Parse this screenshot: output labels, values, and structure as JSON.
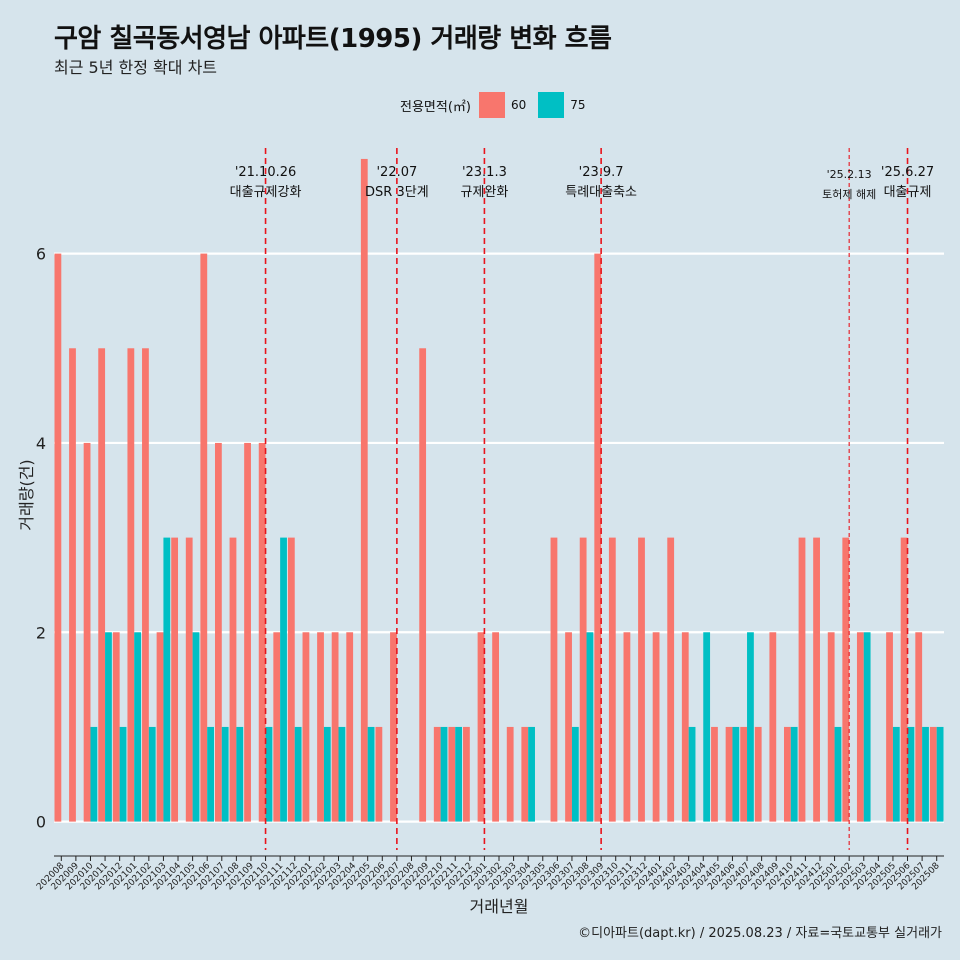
{
  "header": {
    "title": "구암 칠곡동서영남 아파트(1995) 거래량 변화 흐름",
    "subtitle": "최근 5년 한정 확대 차트"
  },
  "legend": {
    "title": "전용면적(㎡)",
    "items": [
      {
        "label": "60",
        "color": "#f8766d"
      },
      {
        "label": "75",
        "color": "#00bfc4"
      }
    ]
  },
  "caption": "©디아파트(dapt.kr) / 2025.08.23 / 자료=국토교통부 실거래가",
  "chart_data": {
    "type": "bar",
    "xlabel": "거래년월",
    "ylabel": "거래량(건)",
    "ylim": [
      -0.3,
      7.2
    ],
    "yticks": [
      0,
      2,
      4,
      6
    ],
    "categories": [
      "202008",
      "202009",
      "202010",
      "202011",
      "202012",
      "202101",
      "202102",
      "202103",
      "202104",
      "202105",
      "202106",
      "202107",
      "202108",
      "202109",
      "202110",
      "202111",
      "202112",
      "202201",
      "202202",
      "202203",
      "202204",
      "202205",
      "202206",
      "202207",
      "202208",
      "202209",
      "202210",
      "202211",
      "202212",
      "202301",
      "202302",
      "202303",
      "202304",
      "202305",
      "202306",
      "202307",
      "202308",
      "202309",
      "202310",
      "202311",
      "202312",
      "202401",
      "202402",
      "202403",
      "202404",
      "202405",
      "202406",
      "202407",
      "202408",
      "202409",
      "202410",
      "202411",
      "202412",
      "202501",
      "202502",
      "202503",
      "202504",
      "202505",
      "202506",
      "202507",
      "202508"
    ],
    "series": [
      {
        "name": "60",
        "color": "#f8766d",
        "values": [
          6,
          5,
          4,
          5,
          2,
          5,
          5,
          2,
          3,
          3,
          6,
          4,
          3,
          4,
          4,
          2,
          3,
          2,
          2,
          2,
          2,
          7,
          1,
          2,
          0,
          5,
          1,
          1,
          1,
          2,
          2,
          1,
          1,
          0,
          3,
          2,
          3,
          6,
          3,
          2,
          3,
          2,
          3,
          2,
          0,
          1,
          1,
          1,
          1,
          2,
          1,
          3,
          3,
          2,
          3,
          2,
          0,
          2,
          3,
          2,
          1
        ]
      },
      {
        "name": "75",
        "color": "#00bfc4",
        "values": [
          0,
          0,
          1,
          2,
          1,
          2,
          1,
          3,
          0,
          2,
          1,
          1,
          1,
          0,
          1,
          3,
          1,
          0,
          1,
          1,
          0,
          1,
          0,
          0,
          0,
          0,
          1,
          1,
          0,
          0,
          0,
          0,
          1,
          0,
          0,
          1,
          2,
          0,
          0,
          0,
          0,
          0,
          0,
          1,
          2,
          0,
          1,
          2,
          0,
          0,
          1,
          0,
          0,
          1,
          0,
          2,
          0,
          1,
          1,
          1,
          1
        ]
      }
    ],
    "events": [
      {
        "date": "'21.10.26",
        "label": "대출규제강화",
        "index": 14,
        "style": "dashed-red"
      },
      {
        "date": "'22.07",
        "label": "DSR 3단계",
        "index": 23,
        "style": "dashed-red"
      },
      {
        "date": "'23.1.3",
        "label": "규제완화",
        "index": 29,
        "style": "dashed-red"
      },
      {
        "date": "'23.9.7",
        "label": "특례대출축소",
        "index": 37,
        "style": "dashed-red"
      },
      {
        "date": "'25.2.13",
        "label": "토허제 해제",
        "index": 54,
        "style": "thin-red"
      },
      {
        "date": "'25.6.27",
        "label": "대출규제",
        "index": 58,
        "style": "dashed-red"
      }
    ]
  }
}
